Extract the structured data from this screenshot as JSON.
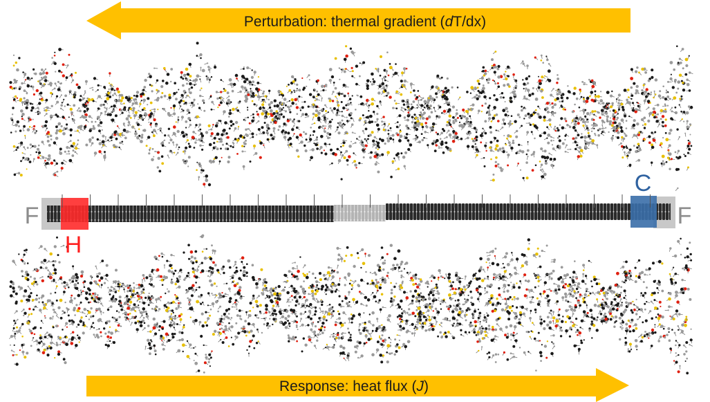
{
  "top_arrow": {
    "before": "Perturbation: thermal gradient (",
    "italic": "d",
    "after": "T/dx)"
  },
  "bottom_arrow": {
    "before": "Response: heat flux (",
    "italic": "J",
    "after": ")"
  },
  "labels": {
    "left_fixed": "F",
    "hot": "H",
    "cold": "C",
    "right_fixed": "F"
  }
}
